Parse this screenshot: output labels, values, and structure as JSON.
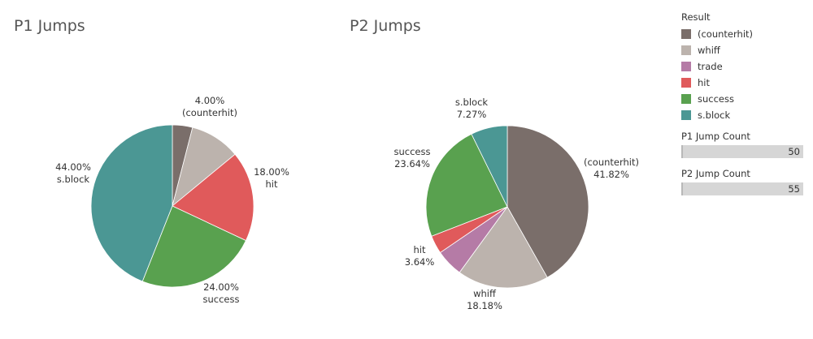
{
  "charts": {
    "p1_title": "P1 Jumps",
    "p2_title": "P2 Jumps"
  },
  "legend": {
    "title": "Result",
    "items": [
      {
        "label": "(counterhit)",
        "color": "#7a6e6a"
      },
      {
        "label": "whiff",
        "color": "#bcb3ad"
      },
      {
        "label": "trade",
        "color": "#b57ba6"
      },
      {
        "label": "hit",
        "color": "#e05a5b"
      },
      {
        "label": "success",
        "color": "#59a14f"
      },
      {
        "label": "s.block",
        "color": "#4b9794"
      }
    ]
  },
  "controls": {
    "p1_count_title": "P1 Jump Count",
    "p1_count_value": "50",
    "p2_count_title": "P2 Jump Count",
    "p2_count_value": "55"
  },
  "chart_data": [
    {
      "type": "pie",
      "title": "P1 Jumps",
      "slices": [
        {
          "label": "(counterhit)",
          "value": 4.0,
          "value_label": "4.00%",
          "color": "#7a6e6a"
        },
        {
          "label": "whiff",
          "value": 10.0,
          "value_label": "",
          "color": "#bcb3ad"
        },
        {
          "label": "hit",
          "value": 18.0,
          "value_label": "18.00%",
          "color": "#e05a5b"
        },
        {
          "label": "success",
          "value": 24.0,
          "value_label": "24.00%",
          "color": "#59a14f"
        },
        {
          "label": "s.block",
          "value": 44.0,
          "value_label": "44.00%",
          "color": "#4b9794"
        }
      ]
    },
    {
      "type": "pie",
      "title": "P2 Jumps",
      "slices": [
        {
          "label": "(counterhit)",
          "value": 41.82,
          "value_label": "41.82%",
          "color": "#7a6e6a"
        },
        {
          "label": "whiff",
          "value": 18.18,
          "value_label": "18.18%",
          "color": "#bcb3ad"
        },
        {
          "label": "trade",
          "value": 5.45,
          "value_label": "",
          "color": "#b57ba6"
        },
        {
          "label": "hit",
          "value": 3.64,
          "value_label": "3.64%",
          "color": "#e05a5b"
        },
        {
          "label": "success",
          "value": 23.64,
          "value_label": "23.64%",
          "color": "#59a14f"
        },
        {
          "label": "s.block",
          "value": 7.27,
          "value_label": "7.27%",
          "color": "#4b9794"
        }
      ]
    }
  ]
}
